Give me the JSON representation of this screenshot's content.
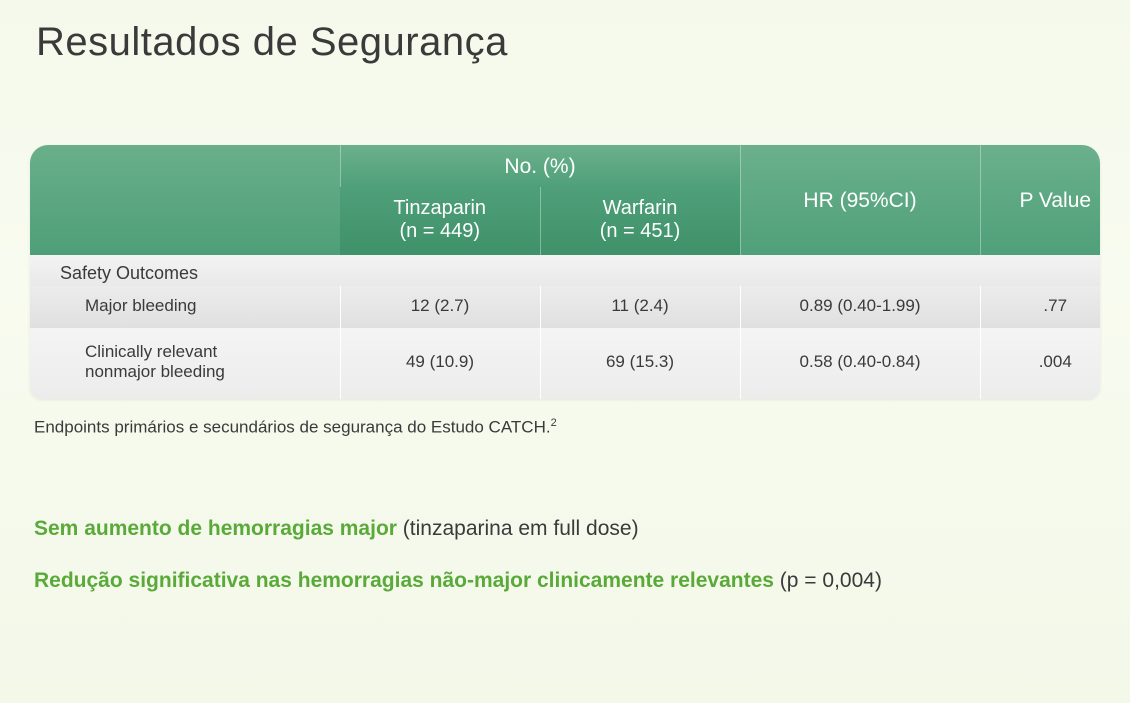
{
  "title": "Resultados de Segurança",
  "table": {
    "header": {
      "no_pct": "No. (%)",
      "tinza_line1": "Tinzaparin",
      "tinza_line2": "(n = 449)",
      "warf_line1": "Warfarin",
      "warf_line2": "(n = 451)",
      "hr": "HR (95%CI)",
      "pval": "P Value"
    },
    "section_label": "Safety Outcomes",
    "rows": [
      {
        "label": "Major bleeding",
        "tinza": "12 (2.7)",
        "warf": "11 (2.4)",
        "hr": "0.89 (0.40-1.99)",
        "p": ".77"
      },
      {
        "label_line1": "Clinically relevant",
        "label_line2": "nonmajor bleeding",
        "tinza": "49 (10.9)",
        "warf": "69 (15.3)",
        "hr": "0.58 (0.40-0.84)",
        "p": ".004"
      }
    ]
  },
  "caption_main": "Endpoints primários e secundários de segurança do Estudo CATCH.",
  "caption_sup": "2",
  "bullets": [
    {
      "strong": "Sem aumento de hemorragias major",
      "rest": " (tinzaparina em full dose)"
    },
    {
      "strong": "Redução significativa nas hemorragias não-major clinicamente relevantes",
      "rest": " (p = 0,004)"
    }
  ],
  "colors": {
    "header_grad_top": "#6bb08c",
    "header_grad_bot": "#3f9169",
    "bg_top": "#f5f9ec",
    "accent_green": "#5aaa3a",
    "text": "#3a3a3a"
  }
}
